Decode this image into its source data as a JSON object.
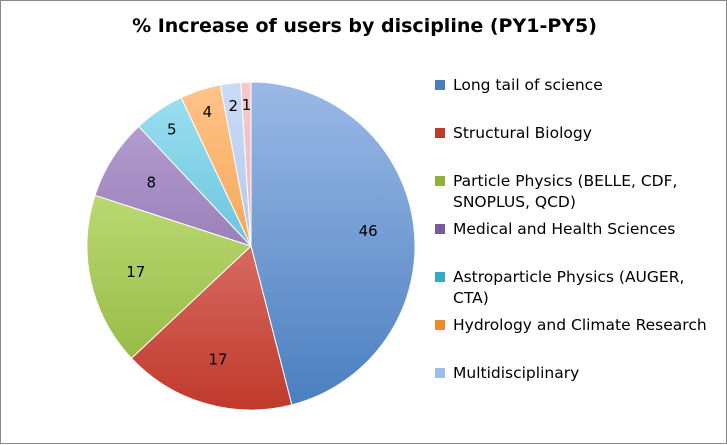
{
  "chart_data": {
    "type": "pie",
    "title": "% Increase of users by discipline (PY1-PY5)",
    "slices": [
      {
        "name": "Long tail of science",
        "value": 46,
        "color": "#4a7ebf",
        "light": "#9ab9e6"
      },
      {
        "name": "Structural Biology",
        "value": 17,
        "color": "#c0392b",
        "light": "#ef9a98"
      },
      {
        "name": "Particle Physics (BELLE, CDF, SNOPLUS, QCD)",
        "value": 17,
        "color": "#8db33a",
        "light": "#d2ec8f"
      },
      {
        "name": "Medical and Health Sciences",
        "value": 8,
        "color": "#7b5a9e",
        "light": "#bba6d6"
      },
      {
        "name": "Astroparticle Physics (AUGER, CTA)",
        "value": 5,
        "color": "#39a9c8",
        "light": "#9ee1f2"
      },
      {
        "name": "Hydrology and Climate Research",
        "value": 4,
        "color": "#ef8a2b",
        "light": "#ffc48a"
      },
      {
        "name": "Multidisciplinary",
        "value": 2,
        "color": "#9fbbe8",
        "light": "#c9dbf6"
      },
      {
        "name": "",
        "value": 1,
        "color": "#e8a0a6",
        "light": "#f6c9cd"
      }
    ],
    "legend_position": "right"
  }
}
